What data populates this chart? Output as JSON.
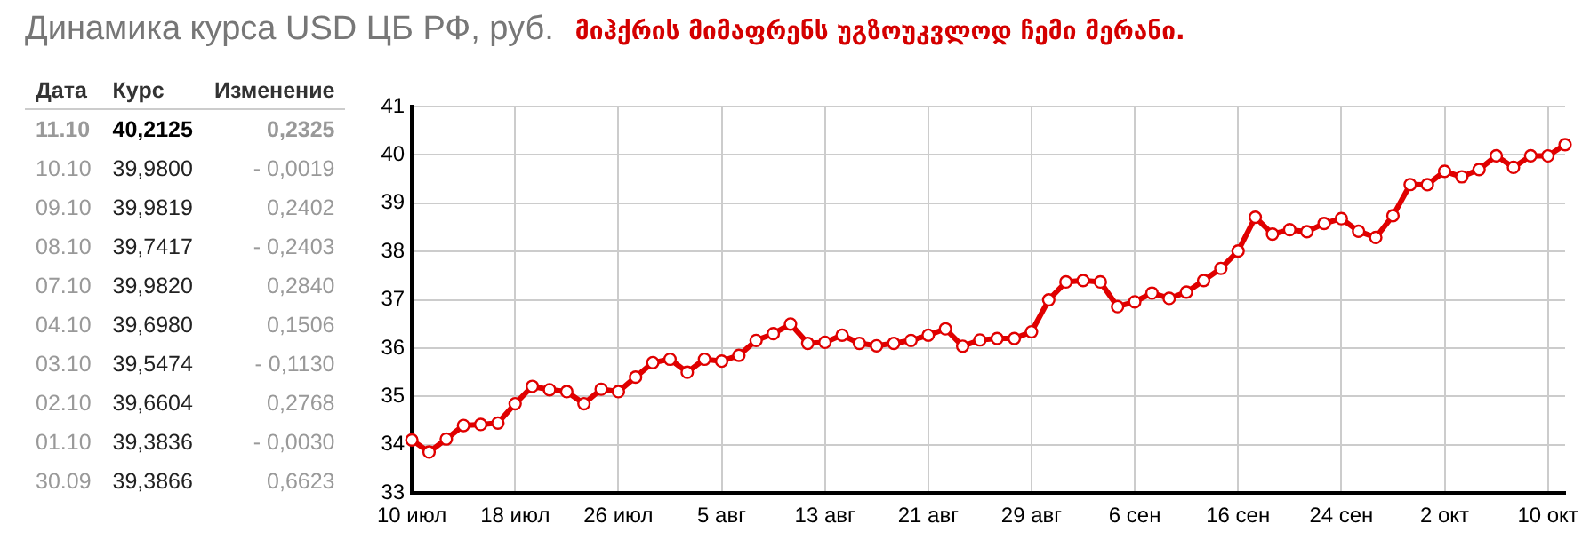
{
  "chart_data": [
    {
      "type": "other",
      "annotations": [
        "Дата",
        "Курс",
        "Изменение",
        "11.10",
        "40,2125",
        "0,2325",
        "10.10",
        "39,9800",
        "- 0,0019",
        "09.10",
        "39,9819",
        "0,2402",
        "08.10",
        "39,7417",
        "- 0,2403",
        "07.10",
        "39,9820",
        "0,2840",
        "04.10",
        "39,6980",
        "0,1506",
        "03.10",
        "39,5474",
        "- 0,1130",
        "02.10",
        "39,6604",
        "0,2768",
        "01.10",
        "39,3836",
        "- 0,0030",
        "30.09",
        "39,3866",
        "0,6623"
      ]
    },
    {
      "type": "line",
      "title": "Динамика курса USD ЦБ РФ, руб.",
      "subtitle": "მიჰქრის მიმაფრენს უგზოუკვლოდ ჩემი მერანი.",
      "categories": [
        "10 июл",
        null,
        null,
        null,
        null,
        null,
        "18 июл",
        null,
        null,
        null,
        null,
        null,
        "26 июл",
        null,
        null,
        null,
        null,
        null,
        "5 авг",
        null,
        null,
        null,
        null,
        null,
        "13 авг",
        null,
        null,
        null,
        null,
        null,
        "21 авг",
        null,
        null,
        null,
        null,
        null,
        "29 авг",
        null,
        null,
        null,
        null,
        null,
        "6 сен",
        null,
        null,
        null,
        null,
        null,
        "16 сен",
        null,
        null,
        null,
        null,
        null,
        "24 сен",
        null,
        null,
        null,
        null,
        null,
        "2 окт",
        null,
        null,
        null,
        null,
        null,
        "10 окт",
        null
      ],
      "series": [
        {
          "color": "#e00000",
          "values": [
            34.1,
            33.85,
            34.12,
            34.4,
            34.42,
            34.45,
            34.85,
            35.21,
            35.14,
            35.1,
            34.85,
            35.15,
            35.1,
            35.4,
            35.7,
            35.77,
            35.5,
            35.77,
            35.73,
            35.85,
            36.16,
            36.3,
            36.5,
            36.1,
            36.12,
            36.27,
            36.1,
            36.05,
            36.1,
            36.16,
            36.27,
            36.4,
            36.04,
            36.17,
            36.2,
            36.2,
            36.34,
            37.0,
            37.37,
            37.4,
            37.37,
            36.86,
            36.96,
            37.14,
            37.03,
            37.16,
            37.4,
            37.65,
            38.01,
            38.71,
            38.36,
            38.45,
            38.41,
            38.58,
            38.68,
            38.42,
            38.29,
            38.74,
            39.3866,
            39.3836,
            39.6604,
            39.5474,
            39.698,
            39.982,
            39.7417,
            39.9819,
            39.98,
            40.2125
          ]
        }
      ],
      "ylim": [
        33,
        41
      ],
      "yticks": [
        33,
        34,
        35,
        36,
        37,
        38,
        39,
        40,
        41
      ],
      "grid": true,
      "legend": false,
      "marker": "circle",
      "line_style": "solid"
    }
  ]
}
